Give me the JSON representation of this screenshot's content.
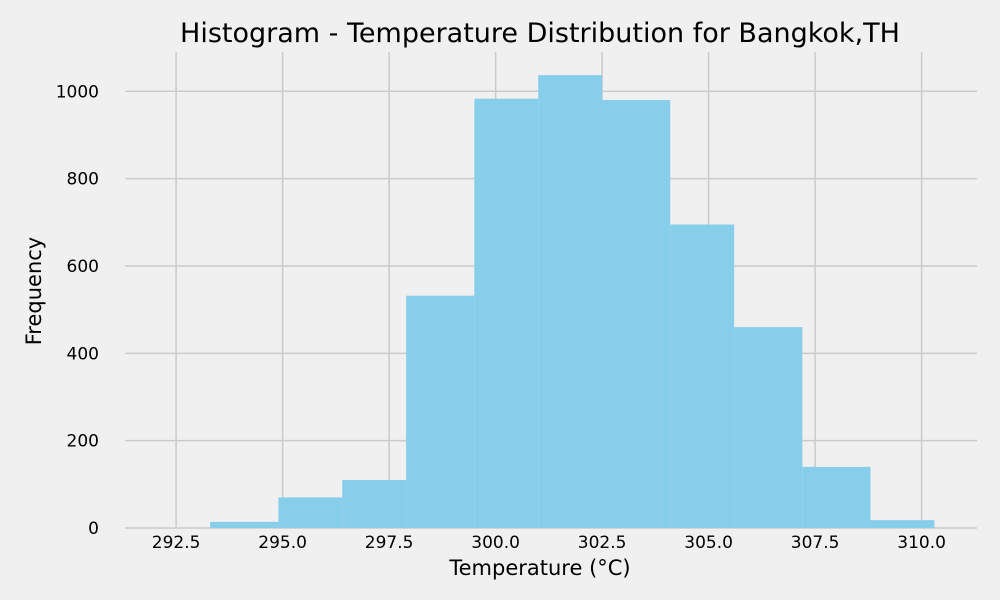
{
  "chart_data": {
    "type": "bar",
    "title": "Histogram - Temperature Distribution for Bangkok,TH",
    "xlabel": "Temperature (°C)",
    "ylabel": "Frequency",
    "bins": [
      {
        "x0": 293.3,
        "x1": 294.9,
        "value": 14
      },
      {
        "x0": 294.9,
        "x1": 296.4,
        "value": 70
      },
      {
        "x0": 296.4,
        "x1": 297.9,
        "value": 110
      },
      {
        "x0": 297.9,
        "x1": 299.5,
        "value": 532
      },
      {
        "x0": 299.5,
        "x1": 301.0,
        "value": 983
      },
      {
        "x0": 301.0,
        "x1": 302.5,
        "value": 1037
      },
      {
        "x0": 302.5,
        "x1": 304.1,
        "value": 980
      },
      {
        "x0": 304.1,
        "x1": 305.6,
        "value": 695
      },
      {
        "x0": 305.6,
        "x1": 307.2,
        "value": 460
      },
      {
        "x0": 307.2,
        "x1": 308.8,
        "value": 140
      },
      {
        "x0": 308.8,
        "x1": 310.3,
        "value": 18
      }
    ],
    "xlim": [
      291.3,
      311.3
    ],
    "ylim": [
      0,
      1090
    ],
    "xticks": [
      292.5,
      295.0,
      297.5,
      300.0,
      302.5,
      305.0,
      307.5,
      310.0
    ],
    "xtick_labels": [
      "292.5",
      "295.0",
      "297.5",
      "300.0",
      "302.5",
      "305.0",
      "307.5",
      "310.0"
    ],
    "yticks": [
      0,
      200,
      400,
      600,
      800,
      1000
    ],
    "ytick_labels": [
      "0",
      "200",
      "400",
      "600",
      "800",
      "1000"
    ],
    "grid": true,
    "bar_color": "#87ceeb",
    "background_color": "#f0f0f0",
    "grid_color": "#cbcbcb"
  }
}
